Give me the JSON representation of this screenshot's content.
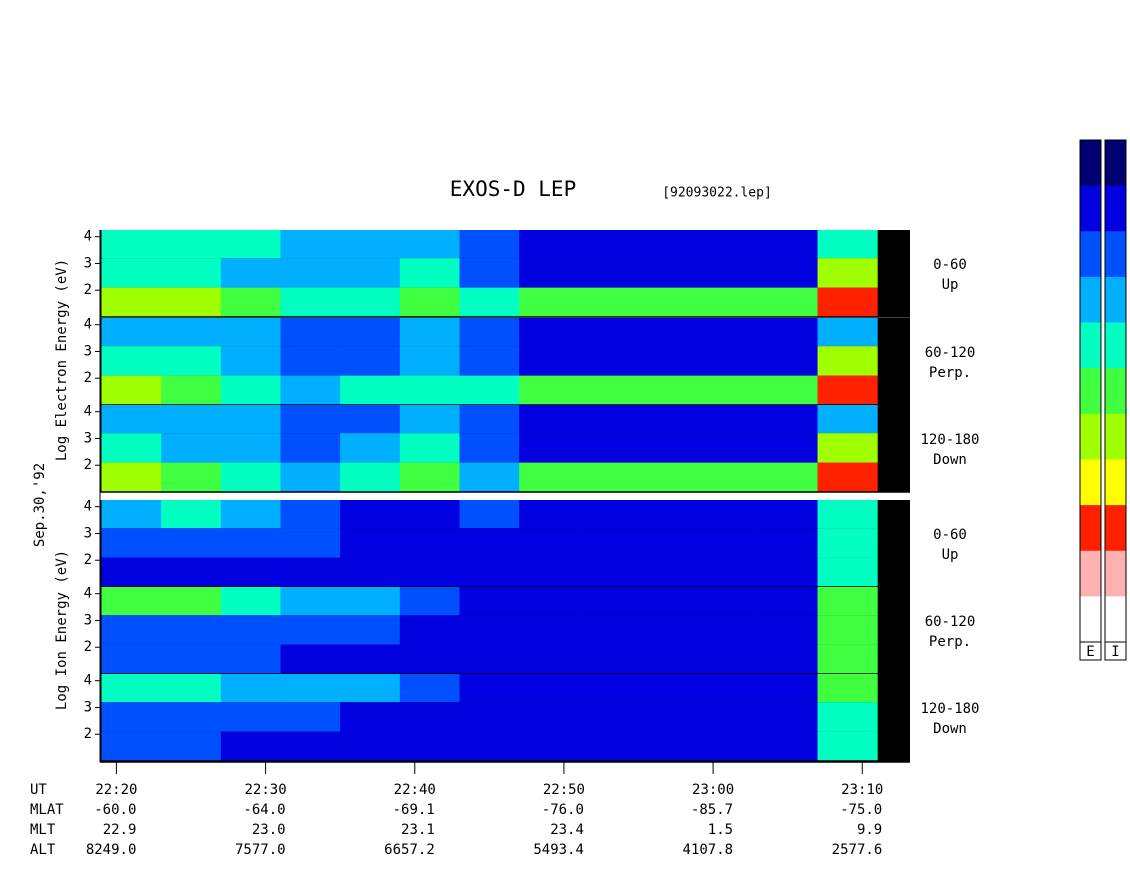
{
  "chart_data": {
    "type": "spectrogram",
    "title": "EXOS-D LEP",
    "subtitle": "[92093022.lep]",
    "date_label": "Sep.30,'92",
    "y_label_electron": "Log Electron Energy (eV)",
    "y_label_ion": "Log Ion Energy (eV)",
    "xlim": [
      1338.9,
      1393.2
    ],
    "xticks": [
      {
        "value": 1340,
        "label": "22:20"
      },
      {
        "value": 1350,
        "label": "22:30"
      },
      {
        "value": 1360,
        "label": "22:40"
      },
      {
        "value": 1370,
        "label": "22:50"
      },
      {
        "value": 1380,
        "label": "23:00"
      },
      {
        "value": 1390,
        "label": "23:10"
      }
    ],
    "ylim": [
      1.0,
      4.25
    ],
    "yticks": [
      2,
      3,
      4
    ],
    "x_bins": [
      1339,
      1343,
      1347,
      1351,
      1355,
      1359,
      1363,
      1367,
      1371,
      1375,
      1379,
      1383,
      1387,
      1391
    ],
    "energy_bins": [
      1.0,
      2.1,
      3.2,
      4.25
    ],
    "clim": [
      0,
      10
    ],
    "colormap": [
      "#000070",
      "#0000e0",
      "#0050ff",
      "#00b0ff",
      "#00ffc0",
      "#40ff40",
      "#a0ff00",
      "#ffff00",
      "#ff2000",
      "#ffb0b0",
      "#ffffff"
    ],
    "colorbar_labels": [
      "E",
      "I"
    ],
    "panels": [
      {
        "pitch": "0-60",
        "direction": "Up",
        "values": [
          [
            6,
            6,
            5,
            4,
            4,
            5,
            4,
            5,
            5,
            5,
            5,
            5,
            8
          ],
          [
            4,
            4,
            3,
            3,
            3,
            4,
            2,
            1,
            1,
            1,
            1,
            1,
            6
          ],
          [
            4,
            4,
            4,
            3,
            3,
            3,
            2,
            1,
            1,
            1,
            1,
            1,
            4
          ]
        ]
      },
      {
        "pitch": "60-120",
        "direction": "Perp.",
        "values": [
          [
            6,
            5,
            4,
            3,
            4,
            4,
            4,
            5,
            5,
            5,
            5,
            5,
            8
          ],
          [
            4,
            4,
            3,
            2,
            2,
            3,
            2,
            1,
            1,
            1,
            1,
            1,
            6
          ],
          [
            3,
            3,
            3,
            2,
            2,
            3,
            2,
            1,
            1,
            1,
            1,
            1,
            3
          ]
        ]
      },
      {
        "pitch": "120-180",
        "direction": "Down",
        "values": [
          [
            6,
            5,
            4,
            3,
            4,
            5,
            3,
            5,
            5,
            5,
            5,
            5,
            8
          ],
          [
            4,
            3,
            3,
            2,
            3,
            4,
            2,
            1,
            1,
            1,
            1,
            1,
            6
          ],
          [
            3,
            3,
            3,
            2,
            2,
            3,
            2,
            1,
            1,
            1,
            1,
            1,
            3
          ]
        ]
      },
      {
        "pitch": "0-60",
        "direction": "Up",
        "values": [
          [
            1,
            1,
            1,
            1,
            1,
            1,
            1,
            1,
            1,
            1,
            1,
            1,
            4
          ],
          [
            2,
            2,
            2,
            2,
            1,
            1,
            1,
            1,
            1,
            1,
            1,
            1,
            4
          ],
          [
            3,
            4,
            3,
            2,
            1,
            1,
            2,
            1,
            1,
            1,
            1,
            1,
            4
          ]
        ]
      },
      {
        "pitch": "60-120",
        "direction": "Perp.",
        "values": [
          [
            2,
            2,
            2,
            1,
            1,
            1,
            1,
            1,
            1,
            1,
            1,
            1,
            5
          ],
          [
            2,
            2,
            2,
            2,
            2,
            1,
            1,
            1,
            1,
            1,
            1,
            1,
            5
          ],
          [
            5,
            5,
            4,
            3,
            3,
            2,
            1,
            1,
            1,
            1,
            1,
            1,
            5
          ]
        ]
      },
      {
        "pitch": "120-180",
        "direction": "Down",
        "values": [
          [
            2,
            2,
            1,
            1,
            1,
            1,
            1,
            1,
            1,
            1,
            1,
            1,
            4
          ],
          [
            2,
            2,
            2,
            2,
            1,
            1,
            1,
            1,
            1,
            1,
            1,
            1,
            4
          ],
          [
            4,
            4,
            3,
            3,
            3,
            2,
            1,
            1,
            1,
            1,
            1,
            1,
            5
          ]
        ]
      }
    ],
    "orbit": {
      "labels": [
        "UT",
        "MLAT",
        "MLT",
        "ALT"
      ],
      "rows": [
        [
          "-60.0",
          "-64.0",
          "-69.1",
          "-76.0",
          "-85.7",
          "-75.0"
        ],
        [
          "22.9",
          "23.0",
          "23.1",
          "23.4",
          "1.5",
          "9.9"
        ],
        [
          "8249.0",
          "7577.0",
          "6657.2",
          "5493.4",
          "4107.8",
          "2577.6"
        ]
      ]
    }
  }
}
